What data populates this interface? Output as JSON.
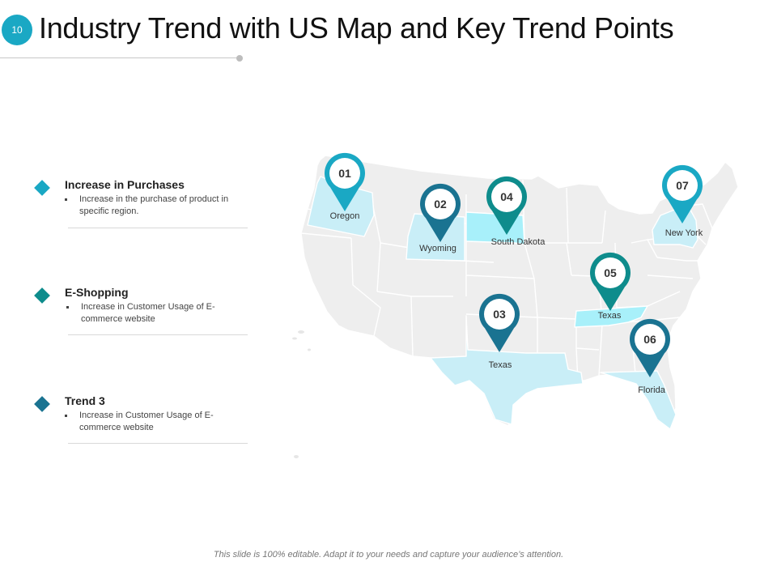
{
  "slide_number": "10",
  "title": "Industry Trend with US Map and Key Trend Points",
  "trends": [
    {
      "heading": "Increase in Purchases",
      "text": "Increase in the purchase of product in specific region.",
      "color": "#1aa8c4"
    },
    {
      "heading": "E-Shopping",
      "text": "Increase in Customer Usage of E-commerce website",
      "color": "#0e8c8c"
    },
    {
      "heading": "Trend 3",
      "text": "Increase in Customer Usage of E-commerce website",
      "color": "#1a7391"
    }
  ],
  "pins": [
    {
      "number": "01",
      "label": "Oregon",
      "color": "#1aa8c4"
    },
    {
      "number": "02",
      "label": "Wyoming",
      "color": "#1a7391"
    },
    {
      "number": "03",
      "label": "Texas",
      "color": "#1a7391"
    },
    {
      "number": "04",
      "label": "South Dakota",
      "color": "#0e8c8c"
    },
    {
      "number": "05",
      "label": "Texas",
      "color": "#0e8c8c"
    },
    {
      "number": "06",
      "label": "Florida",
      "color": "#1a7391"
    },
    {
      "number": "07",
      "label": "New York",
      "color": "#1aa8c4"
    }
  ],
  "colors": {
    "map_base": "#eeeeee",
    "map_border": "#ffffff",
    "highlight_light": "#c9eef7",
    "highlight_cyan": "#a8f0fa"
  },
  "footer": "This slide is 100% editable. Adapt it to your needs and capture your audience’s attention."
}
